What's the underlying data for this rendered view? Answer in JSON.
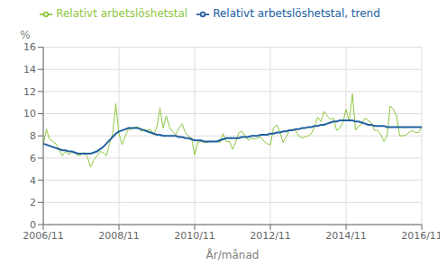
{
  "chart_data": {
    "type": "line",
    "ylabel": "%",
    "xlabel": "År/månad",
    "categories": [
      "2006/11",
      null,
      null,
      null,
      null,
      null,
      null,
      null,
      null,
      null,
      null,
      null,
      null,
      null,
      null,
      null,
      null,
      null,
      null,
      null,
      null,
      null,
      null,
      null,
      "2008/11",
      null,
      null,
      null,
      null,
      null,
      null,
      null,
      null,
      null,
      null,
      null,
      null,
      null,
      null,
      null,
      null,
      null,
      null,
      null,
      null,
      null,
      null,
      null,
      "2010/11",
      null,
      null,
      null,
      null,
      null,
      null,
      null,
      null,
      null,
      null,
      null,
      null,
      null,
      null,
      null,
      null,
      null,
      null,
      null,
      null,
      null,
      null,
      null,
      "2012/11",
      null,
      null,
      null,
      null,
      null,
      null,
      null,
      null,
      null,
      null,
      null,
      null,
      null,
      null,
      null,
      null,
      null,
      null,
      null,
      null,
      null,
      null,
      null,
      "2014/11",
      null,
      null,
      null,
      null,
      null,
      null,
      null,
      null,
      null,
      null,
      null,
      null,
      null,
      null,
      null,
      null,
      null,
      null,
      null,
      null,
      null,
      null,
      null,
      "2016/11"
    ],
    "series": [
      {
        "name": "Relativt arbetslöshetstal",
        "color": "#8dc63f",
        "values": [
          7.2,
          8.6,
          7.7,
          7.5,
          7.3,
          6.8,
          6.2,
          6.6,
          6.3,
          6.5,
          6.5,
          6.2,
          6.3,
          6.5,
          6.1,
          5.2,
          5.8,
          6.2,
          6.6,
          6.5,
          6.2,
          7.3,
          8.2,
          10.9,
          8.2,
          7.2,
          8.0,
          8.6,
          8.6,
          8.8,
          8.8,
          8.4,
          8.6,
          8.5,
          8.6,
          8.1,
          8.8,
          10.5,
          8.7,
          9.8,
          8.8,
          8.4,
          8.1,
          8.7,
          9.1,
          8.3,
          8.0,
          7.8,
          6.3,
          7.4,
          7.5,
          7.4,
          7.4,
          7.5,
          7.5,
          7.5,
          7.4,
          8.2,
          7.5,
          7.5,
          6.8,
          7.4,
          8.3,
          8.4,
          8.0,
          7.6,
          7.8,
          7.7,
          7.8,
          7.9,
          7.5,
          7.3,
          7.2,
          8.7,
          9.0,
          8.4,
          7.4,
          7.9,
          8.5,
          8.6,
          8.5,
          8.0,
          7.8,
          7.9,
          8.0,
          8.2,
          8.8,
          9.7,
          9.3,
          10.2,
          9.8,
          9.5,
          9.6,
          8.5,
          8.7,
          9.2,
          10.4,
          9.3,
          11.8,
          8.5,
          8.9,
          9.1,
          9.6,
          9.4,
          9.2,
          8.5,
          8.5,
          8.1,
          7.5,
          8.0,
          10.7,
          10.4,
          9.8,
          8.0,
          8.0,
          8.1,
          8.3,
          8.5,
          8.3,
          8.3,
          8.8
        ]
      },
      {
        "name": "Relativt arbetslöshetstal, trend",
        "color": "#2060a0",
        "values": [
          7.3,
          7.2,
          7.1,
          7.0,
          6.9,
          6.8,
          6.7,
          6.7,
          6.6,
          6.6,
          6.5,
          6.4,
          6.4,
          6.4,
          6.4,
          6.4,
          6.5,
          6.6,
          6.8,
          7.0,
          7.3,
          7.6,
          7.9,
          8.2,
          8.4,
          8.5,
          8.6,
          8.7,
          8.7,
          8.7,
          8.7,
          8.6,
          8.5,
          8.4,
          8.3,
          8.2,
          8.1,
          8.1,
          8.0,
          8.0,
          8.0,
          8.0,
          8.0,
          7.9,
          7.9,
          7.8,
          7.8,
          7.7,
          7.6,
          7.6,
          7.6,
          7.5,
          7.5,
          7.5,
          7.5,
          7.5,
          7.6,
          7.7,
          7.8,
          7.8,
          7.8,
          7.8,
          7.8,
          7.9,
          7.9,
          7.9,
          8.0,
          8.0,
          8.0,
          8.1,
          8.1,
          8.1,
          8.2,
          8.2,
          8.3,
          8.3,
          8.4,
          8.4,
          8.5,
          8.5,
          8.6,
          8.6,
          8.7,
          8.7,
          8.8,
          8.8,
          8.9,
          8.9,
          9.0,
          9.0,
          9.1,
          9.2,
          9.3,
          9.3,
          9.4,
          9.4,
          9.4,
          9.4,
          9.4,
          9.3,
          9.3,
          9.2,
          9.1,
          9.0,
          9.0,
          8.9,
          8.9,
          8.9,
          8.9,
          8.8,
          8.8,
          8.8,
          8.8,
          8.8,
          8.8,
          8.8,
          8.8,
          8.8,
          8.8,
          8.8,
          8.8
        ]
      }
    ],
    "ylim": [
      0,
      16
    ],
    "yticks": [
      0,
      2,
      4,
      6,
      8,
      10,
      12,
      14,
      16
    ],
    "grid": true,
    "legend": "top"
  }
}
